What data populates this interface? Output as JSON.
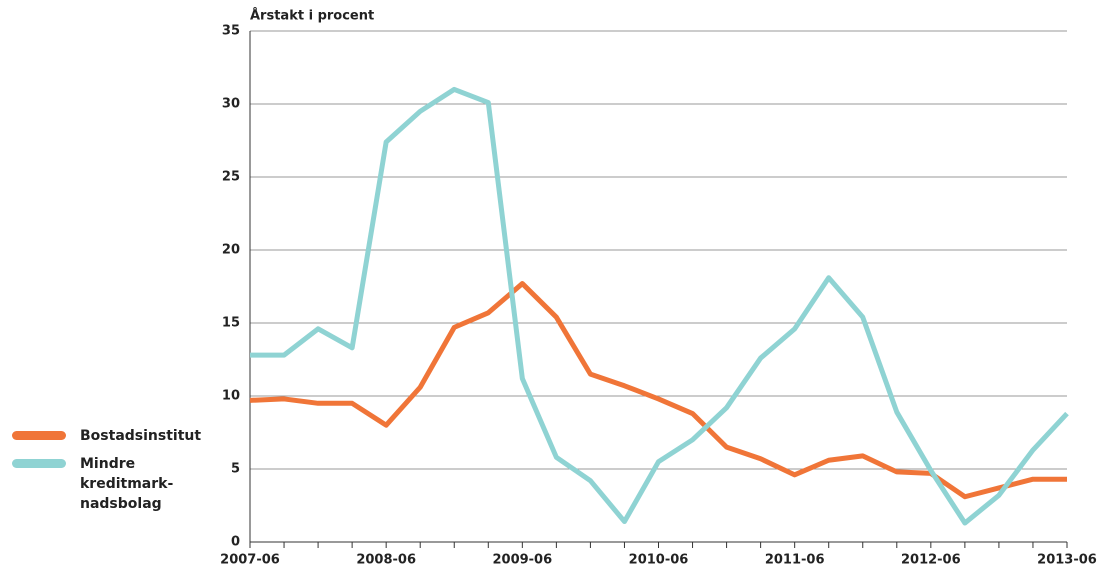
{
  "chart_data": {
    "type": "line",
    "y_axis_title": "Årstakt i procent",
    "categories": [
      "2007-06",
      null,
      null,
      null,
      "2008-06",
      null,
      null,
      null,
      "2009-06",
      null,
      null,
      null,
      "2010-06",
      null,
      null,
      null,
      "2011-06",
      null,
      null,
      null,
      "2012-06",
      null,
      null,
      null,
      "2013-06"
    ],
    "series": [
      {
        "name": "Bostadsinstitut",
        "color": "#f07538",
        "values": [
          9.7,
          9.8,
          9.5,
          9.5,
          8.0,
          10.6,
          14.7,
          15.7,
          17.7,
          15.4,
          11.5,
          10.7,
          9.8,
          8.8,
          6.5,
          5.7,
          4.6,
          5.6,
          5.9,
          4.8,
          4.7,
          3.1,
          3.7,
          4.3,
          4.3
        ]
      },
      {
        "name": "Mindre kreditmark-nadsbolag",
        "color": "#8fd3d3",
        "values": [
          12.8,
          12.8,
          14.6,
          13.3,
          27.4,
          29.5,
          31.0,
          30.1,
          11.2,
          5.8,
          4.2,
          1.4,
          5.5,
          7.0,
          9.2,
          12.6,
          14.6,
          18.1,
          15.4,
          8.9,
          4.9,
          1.3,
          3.2,
          6.3,
          8.8
        ]
      }
    ],
    "ylim": [
      0,
      35
    ],
    "yticks": [
      0,
      5,
      10,
      15,
      20,
      25,
      30,
      35
    ],
    "grid": true
  }
}
